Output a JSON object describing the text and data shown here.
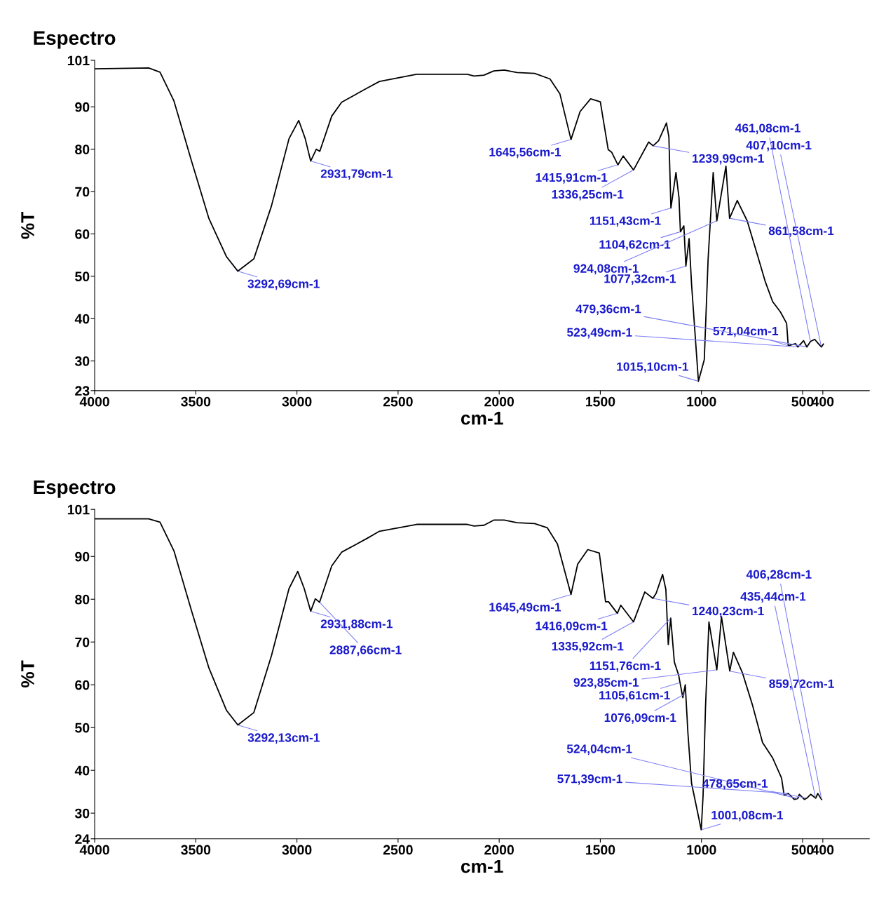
{
  "chart_data": [
    {
      "type": "line",
      "title": "Espectro",
      "xlabel": "cm-1",
      "ylabel": "%T",
      "xlim": [
        4000,
        170
      ],
      "xticks": [
        4000,
        3500,
        3000,
        2500,
        2000,
        1500,
        1000,
        500,
        400
      ],
      "ylim": [
        23,
        101
      ],
      "yticks": [
        23,
        30,
        40,
        50,
        60,
        70,
        80,
        90,
        101
      ],
      "grid": false,
      "legend": false,
      "marker": "none",
      "line_style": "solid",
      "series": [
        {
          "color": "#000000",
          "x": [
            4000,
            3733,
            3677,
            3608,
            3521,
            3435,
            3348,
            3292,
            3213,
            3126,
            3039,
            2991,
            2959,
            2932,
            2904,
            2887,
            2828,
            2779,
            2654,
            2592,
            2408,
            2158,
            2124,
            2075,
            2027,
            1975,
            1912,
            1825,
            1749,
            1700,
            1645,
            1600,
            1548,
            1500,
            1461,
            1444,
            1413,
            1387,
            1336,
            1261,
            1239,
            1212,
            1173,
            1161,
            1151,
            1126,
            1111,
            1104,
            1087,
            1077,
            1061,
            1049,
            1015,
            986,
            967,
            942,
            924,
            879,
            861,
            823,
            774,
            722,
            685,
            648,
            610,
            579,
            571,
            535,
            523,
            495,
            479,
            461,
            440,
            422,
            407,
            397
          ],
          "values": [
            99.0,
            99.2,
            98.2,
            91.4,
            77.2,
            63.6,
            54.6,
            51.2,
            54.1,
            66.6,
            82.5,
            86.8,
            82.5,
            77.2,
            80.0,
            79.5,
            87.8,
            91.1,
            94.4,
            96.0,
            97.7,
            97.7,
            97.3,
            97.5,
            98.5,
            98.7,
            98.1,
            97.9,
            96.6,
            93.1,
            82.3,
            88.9,
            91.9,
            91.2,
            79.9,
            79.3,
            76.3,
            78.4,
            75.1,
            81.7,
            80.8,
            82.0,
            86.2,
            82.9,
            66.1,
            74.5,
            68.5,
            60.5,
            61.9,
            52.4,
            58.9,
            48.2,
            25.2,
            30.3,
            54.1,
            74.5,
            63.1,
            76.0,
            63.7,
            67.9,
            63.1,
            54.8,
            48.8,
            44.0,
            41.6,
            38.9,
            33.6,
            34.1,
            33.3,
            34.8,
            33.3,
            34.6,
            35.1,
            34.1,
            33.3,
            34.0
          ]
        }
      ],
      "annotations": [
        {
          "text": "3292,69cm-1",
          "x": 3292.69,
          "y": 51.2
        },
        {
          "text": "2931,79cm-1",
          "x": 2931.79,
          "y": 77.2
        },
        {
          "text": "1645,56cm-1",
          "x": 1645.56,
          "y": 82.3
        },
        {
          "text": "1415,91cm-1",
          "x": 1415.91,
          "y": 76.3
        },
        {
          "text": "1336,25cm-1",
          "x": 1336.25,
          "y": 75.1
        },
        {
          "text": "1239,99cm-1",
          "x": 1239.99,
          "y": 80.8
        },
        {
          "text": "1151,43cm-1",
          "x": 1151.43,
          "y": 66.1
        },
        {
          "text": "1104,62cm-1",
          "x": 1104.62,
          "y": 60.5
        },
        {
          "text": "1077,32cm-1",
          "x": 1077.32,
          "y": 52.4
        },
        {
          "text": "1015,10cm-1",
          "x": 1015.1,
          "y": 25.2
        },
        {
          "text": "924,08cm-1",
          "x": 924.08,
          "y": 63.1
        },
        {
          "text": "861,58cm-1",
          "x": 861.58,
          "y": 63.7
        },
        {
          "text": "571,04cm-1",
          "x": 571.04,
          "y": 33.6
        },
        {
          "text": "523,49cm-1",
          "x": 523.49,
          "y": 33.3
        },
        {
          "text": "479,36cm-1",
          "x": 479.36,
          "y": 33.3
        },
        {
          "text": "461,08cm-1",
          "x": 461.08,
          "y": 34.6
        },
        {
          "text": "407,10cm-1",
          "x": 407.1,
          "y": 33.3
        }
      ]
    },
    {
      "type": "line",
      "title": "Espectro",
      "xlabel": "cm-1",
      "ylabel": "%T",
      "xlim": [
        4000,
        170
      ],
      "xticks": [
        4000,
        3500,
        3000,
        2500,
        2000,
        1500,
        1000,
        500,
        400
      ],
      "ylim": [
        24,
        101
      ],
      "yticks": [
        24,
        30,
        40,
        50,
        60,
        70,
        80,
        90,
        101
      ],
      "grid": false,
      "legend": false,
      "marker": "none",
      "line_style": "solid",
      "series": [
        {
          "color": "#000000",
          "x": [
            4000,
            3733,
            3677,
            3608,
            3521,
            3435,
            3348,
            3292,
            3213,
            3126,
            3039,
            2996,
            2964,
            2932,
            2909,
            2888,
            2828,
            2779,
            2654,
            2592,
            2408,
            2158,
            2124,
            2075,
            2027,
            1975,
            1912,
            1825,
            1762,
            1712,
            1645,
            1612,
            1562,
            1505,
            1474,
            1459,
            1416,
            1399,
            1336,
            1280,
            1240,
            1224,
            1192,
            1176,
            1164,
            1152,
            1134,
            1113,
            1106,
            1092,
            1080,
            1067,
            1049,
            1001,
            992,
            980,
            963,
            924,
            901,
            860,
            842,
            798,
            748,
            698,
            648,
            604,
            591,
            571,
            541,
            524,
            516,
            491,
            479,
            460,
            435,
            425,
            406
          ],
          "values": [
            98.8,
            98.8,
            98.0,
            91.3,
            77.3,
            63.9,
            54.0,
            50.6,
            53.5,
            66.8,
            82.5,
            86.5,
            82.5,
            77.2,
            80.1,
            79.3,
            87.8,
            91.0,
            94.2,
            95.9,
            97.5,
            97.5,
            97.1,
            97.3,
            98.5,
            98.5,
            97.9,
            97.7,
            96.7,
            92.9,
            81.1,
            88.2,
            91.6,
            90.8,
            79.4,
            79.4,
            76.7,
            78.6,
            74.7,
            81.7,
            80.2,
            81.4,
            85.8,
            82.3,
            69.4,
            75.6,
            65.3,
            62.3,
            60.5,
            57.0,
            60.0,
            48.8,
            37.0,
            26.1,
            34.1,
            54.7,
            74.7,
            63.5,
            75.9,
            63.2,
            67.6,
            62.9,
            55.3,
            46.5,
            42.9,
            38.2,
            34.1,
            34.6,
            33.2,
            33.4,
            34.4,
            33.2,
            33.5,
            34.4,
            33.5,
            34.6,
            33.2
          ]
        }
      ],
      "annotations": [
        {
          "text": "3292,13cm-1",
          "x": 3292.13,
          "y": 50.6
        },
        {
          "text": "2931,88cm-1",
          "x": 2931.88,
          "y": 77.2
        },
        {
          "text": "2887,66cm-1",
          "x": 2887.66,
          "y": 79.3
        },
        {
          "text": "1645,49cm-1",
          "x": 1645.49,
          "y": 81.1
        },
        {
          "text": "1416,09cm-1",
          "x": 1416.09,
          "y": 76.7
        },
        {
          "text": "1335,92cm-1",
          "x": 1335.92,
          "y": 74.7
        },
        {
          "text": "1240,23cm-1",
          "x": 1240.23,
          "y": 80.2
        },
        {
          "text": "1151,76cm-1",
          "x": 1151.76,
          "y": 75.6
        },
        {
          "text": "1105,61cm-1",
          "x": 1105.61,
          "y": 60.5
        },
        {
          "text": "1076,09cm-1",
          "x": 1076.09,
          "y": 58.0
        },
        {
          "text": "1001,08cm-1",
          "x": 1001.08,
          "y": 26.1
        },
        {
          "text": "923,85cm-1",
          "x": 923.85,
          "y": 63.5
        },
        {
          "text": "859,72cm-1",
          "x": 859.72,
          "y": 63.2
        },
        {
          "text": "571,39cm-1",
          "x": 571.39,
          "y": 34.6
        },
        {
          "text": "524,04cm-1",
          "x": 524.04,
          "y": 33.4
        },
        {
          "text": "478,65cm-1",
          "x": 478.65,
          "y": 33.5
        },
        {
          "text": "435,44cm-1",
          "x": 435.44,
          "y": 33.5
        },
        {
          "text": "406,28cm-1",
          "x": 406.28,
          "y": 33.2
        }
      ]
    }
  ]
}
